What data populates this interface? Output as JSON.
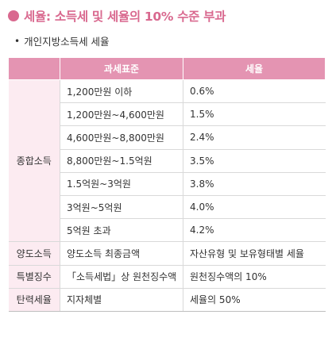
{
  "title": "세율: 소득세 및 세율의 10% 수준 부과",
  "subtitle": "개인지방소득세 세율",
  "table": {
    "headers": [
      "과세표준",
      "세율"
    ],
    "rows": [
      {
        "category": "종합소득",
        "standard": "1,200만원 이하",
        "rate": "0.6%"
      },
      {
        "category": "",
        "standard": "1,200만원~4,600만원",
        "rate": "1.5%"
      },
      {
        "category": "",
        "standard": "4,600만원~8,800만원",
        "rate": "2.4%"
      },
      {
        "category": "",
        "standard": "8,800만원~1.5억원",
        "rate": "3.5%"
      },
      {
        "category": "",
        "standard": "1.5억원~3억원",
        "rate": "3.8%"
      },
      {
        "category": "",
        "standard": "3억원~5억원",
        "rate": "4.0%"
      },
      {
        "category": "",
        "standard": "5억원 초과",
        "rate": "4.2%"
      },
      {
        "category": "양도소득",
        "standard": "양도소득 최종금액",
        "rate": "자산유형 및 보유형태별 세율"
      },
      {
        "category": "특별징수",
        "standard": "「소득세법」상 원천징수액",
        "rate": "원천징수액의 10%"
      },
      {
        "category": "탄력세율",
        "standard": "지자체별",
        "rate": "세율의 50%"
      }
    ]
  },
  "colors": {
    "accent": "#d9698f",
    "header_bg": "#e494b2",
    "category_bg": "#fcebf1"
  }
}
